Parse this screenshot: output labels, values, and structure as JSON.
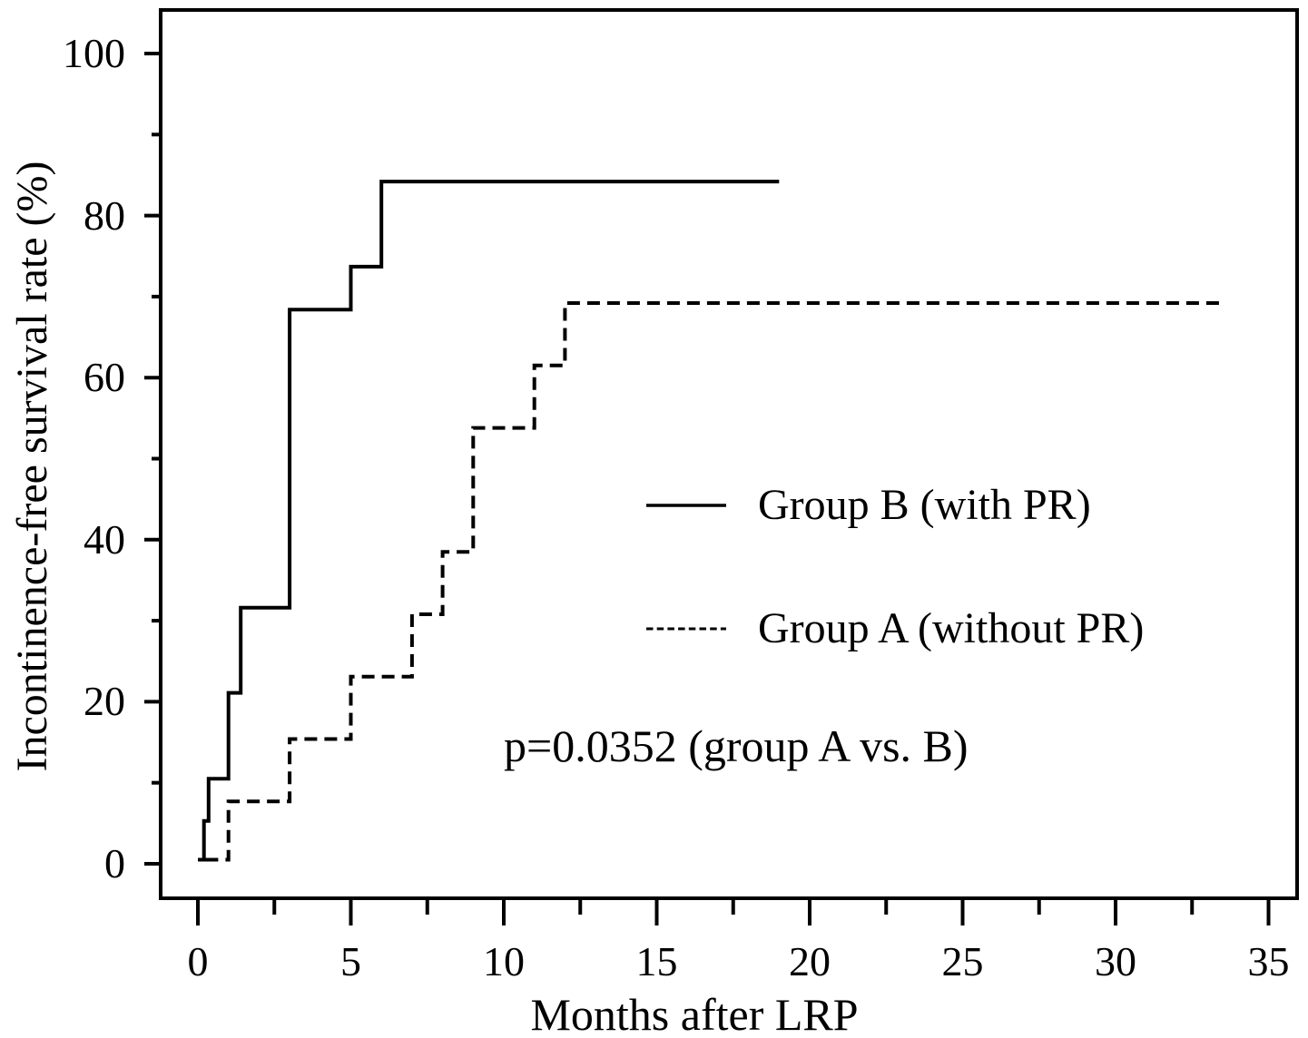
{
  "figure": {
    "background": "#ffffff",
    "line_color": "#000000"
  },
  "chart_data": {
    "type": "line",
    "subtype": "kaplan-meier-step",
    "title": "",
    "xlabel": "Months after LRP",
    "ylabel": "Incontinence-free survival rate (%)",
    "xlim": [
      -1.2,
      36
    ],
    "ylim": [
      -4.5,
      105.5
    ],
    "grid": false,
    "legend_position": "center-right",
    "x_ticks_major": {
      "values": [
        0,
        5,
        10,
        15,
        20,
        25,
        30,
        35
      ],
      "labels": [
        "0",
        "5",
        "10",
        "15",
        "20",
        "25",
        "30",
        "35"
      ]
    },
    "x_ticks_minor": [
      2.5,
      7.5,
      12.5,
      17.5,
      22.5,
      27.5,
      32.5
    ],
    "y_ticks_major": {
      "values": [
        0,
        20,
        40,
        60,
        80,
        100
      ],
      "labels": [
        "0",
        "20",
        "40",
        "60",
        "80",
        "100"
      ]
    },
    "y_ticks_minor": [
      10,
      30,
      50,
      70,
      90
    ],
    "series": [
      {
        "name": "Group B (with PR)",
        "line_style": "solid",
        "color": "#000000",
        "step_points": [
          [
            0,
            0.5
          ],
          [
            0.2,
            5.3
          ],
          [
            0.35,
            10.5
          ],
          [
            1.0,
            21.1
          ],
          [
            1.4,
            31.6
          ],
          [
            3.0,
            68.4
          ],
          [
            5.0,
            73.7
          ],
          [
            6.0,
            84.2
          ],
          [
            19.0,
            84.2
          ]
        ]
      },
      {
        "name": "Group A (without PR)",
        "line_style": "dashed",
        "color": "#000000",
        "step_points": [
          [
            0.25,
            0.5
          ],
          [
            1.0,
            7.7
          ],
          [
            3.0,
            15.4
          ],
          [
            5.0,
            23.1
          ],
          [
            7.0,
            30.8
          ],
          [
            8.0,
            38.5
          ],
          [
            9.0,
            53.8
          ],
          [
            11.0,
            61.5
          ],
          [
            12.0,
            69.2
          ],
          [
            33.5,
            69.2
          ]
        ]
      }
    ],
    "annotation": "p=0.0352 (group A vs. B)"
  }
}
